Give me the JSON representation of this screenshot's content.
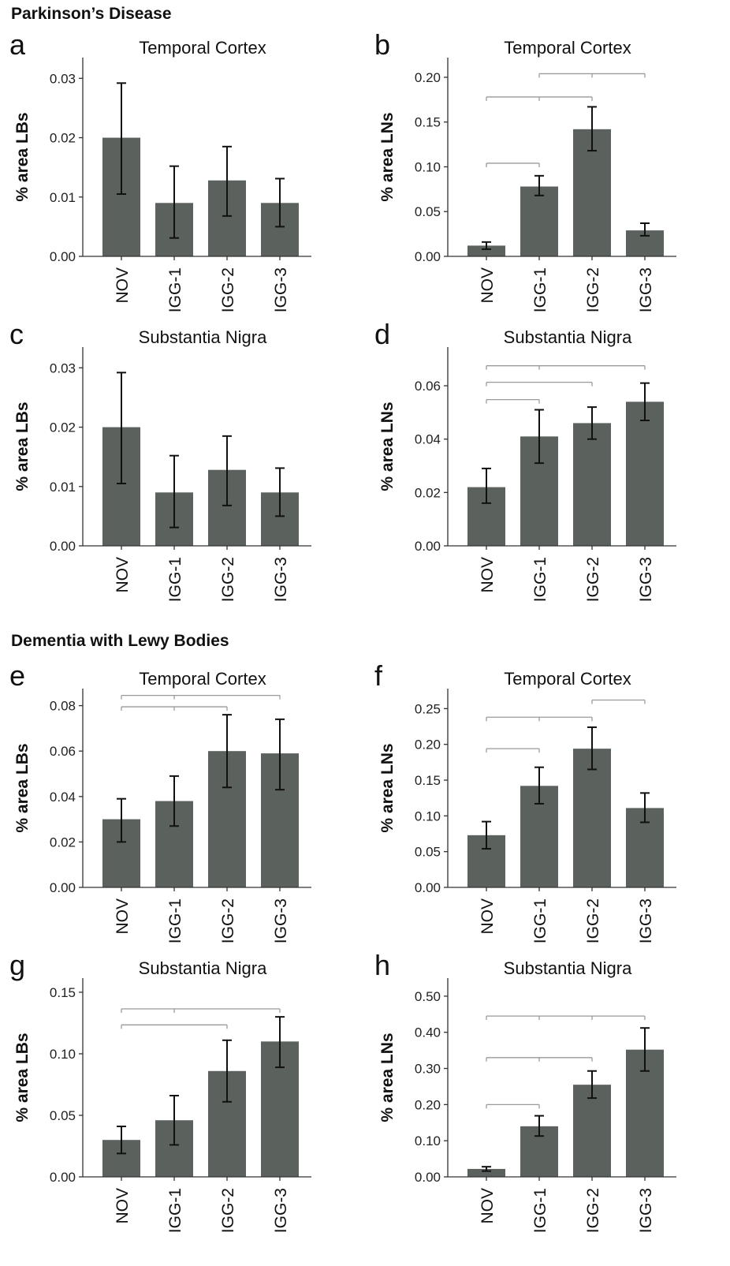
{
  "sections": [
    {
      "title": "Parkinson’s Disease"
    },
    {
      "title": "Dementia with Lewy Bodies"
    }
  ],
  "chart_data": [
    {
      "id": "a",
      "letter": "a",
      "type": "bar",
      "title": "Temporal Cortex",
      "ylabel": "% area LBs",
      "categories": [
        "NOV",
        "IGG-1",
        "IGG-2",
        "IGG-3"
      ],
      "values": [
        0.02,
        0.009,
        0.0128,
        0.009
      ],
      "err_low": [
        0.0105,
        0.0031,
        0.0068,
        0.005
      ],
      "err_high": [
        0.0292,
        0.0152,
        0.0185,
        0.0131
      ],
      "yticks": [
        0.0,
        0.01,
        0.02,
        0.03
      ],
      "tick_labels": [
        "0.00",
        "0.01",
        "0.02",
        "0.03"
      ],
      "ylim": [
        0,
        0.0335
      ],
      "brackets": []
    },
    {
      "id": "b",
      "letter": "b",
      "type": "bar",
      "title": "Temporal Cortex",
      "ylabel": "% area LNs",
      "categories": [
        "NOV",
        "IGG-1",
        "IGG-2",
        "IGG-3"
      ],
      "values": [
        0.012,
        0.078,
        0.142,
        0.029
      ],
      "err_low": [
        0.008,
        0.068,
        0.118,
        0.023
      ],
      "err_high": [
        0.016,
        0.09,
        0.167,
        0.037
      ],
      "yticks": [
        0.0,
        0.05,
        0.1,
        0.15,
        0.2
      ],
      "tick_labels": [
        "0.00",
        "0.05",
        "0.10",
        "0.15",
        "0.20"
      ],
      "ylim": [
        0,
        0.222
      ],
      "brackets": [
        {
          "level": 0.204,
          "from": 1,
          "to": 3,
          "mids": [
            2
          ]
        },
        {
          "level": 0.178,
          "from": 0,
          "to": 2,
          "mids": [
            1
          ]
        },
        {
          "level": 0.104,
          "from": 0,
          "to": 1,
          "mids": []
        }
      ]
    },
    {
      "id": "c",
      "letter": "c",
      "type": "bar",
      "title": "Substantia Nigra",
      "ylabel": "% area LBs",
      "categories": [
        "NOV",
        "IGG-1",
        "IGG-2",
        "IGG-3"
      ],
      "values": [
        0.02,
        0.009,
        0.0128,
        0.009
      ],
      "err_low": [
        0.0105,
        0.0031,
        0.0068,
        0.005
      ],
      "err_high": [
        0.0292,
        0.0152,
        0.0185,
        0.0131
      ],
      "yticks": [
        0.0,
        0.01,
        0.02,
        0.03
      ],
      "tick_labels": [
        "0.00",
        "0.01",
        "0.02",
        "0.03"
      ],
      "ylim": [
        0,
        0.0335
      ],
      "brackets": []
    },
    {
      "id": "d",
      "letter": "d",
      "type": "bar",
      "title": "Substantia Nigra",
      "ylabel": "% area LNs",
      "categories": [
        "NOV",
        "IGG-1",
        "IGG-2",
        "IGG-3"
      ],
      "values": [
        0.022,
        0.041,
        0.046,
        0.054
      ],
      "err_low": [
        0.016,
        0.031,
        0.04,
        0.047
      ],
      "err_high": [
        0.029,
        0.051,
        0.052,
        0.061
      ],
      "yticks": [
        0.0,
        0.02,
        0.04,
        0.06
      ],
      "tick_labels": [
        "0.00",
        "0.02",
        "0.04",
        "0.06"
      ],
      "ylim": [
        0,
        0.0745
      ],
      "brackets": [
        {
          "level": 0.0675,
          "from": 0,
          "to": 3,
          "mids": [
            1
          ]
        },
        {
          "level": 0.0613,
          "from": 0,
          "to": 2,
          "mids": []
        },
        {
          "level": 0.0548,
          "from": 0,
          "to": 1,
          "mids": []
        }
      ]
    },
    {
      "id": "e",
      "letter": "e",
      "type": "bar",
      "title": "Temporal Cortex",
      "ylabel": "% area LBs",
      "categories": [
        "NOV",
        "IGG-1",
        "IGG-2",
        "IGG-3"
      ],
      "values": [
        0.03,
        0.038,
        0.06,
        0.059
      ],
      "err_low": [
        0.02,
        0.027,
        0.044,
        0.043
      ],
      "err_high": [
        0.039,
        0.049,
        0.076,
        0.074
      ],
      "yticks": [
        0.0,
        0.02,
        0.04,
        0.06,
        0.08
      ],
      "tick_labels": [
        "0.00",
        "0.02",
        "0.04",
        "0.06",
        "0.08"
      ],
      "ylim": [
        0,
        0.0875
      ],
      "brackets": [
        {
          "level": 0.0845,
          "from": 0,
          "to": 3,
          "mids": [
            1
          ]
        },
        {
          "level": 0.0795,
          "from": 0,
          "to": 2,
          "mids": [
            1
          ]
        }
      ]
    },
    {
      "id": "f",
      "letter": "f",
      "type": "bar",
      "title": "Temporal Cortex",
      "ylabel": "% area LNs",
      "categories": [
        "NOV",
        "IGG-1",
        "IGG-2",
        "IGG-3"
      ],
      "values": [
        0.073,
        0.142,
        0.194,
        0.111
      ],
      "err_low": [
        0.054,
        0.117,
        0.165,
        0.091
      ],
      "err_high": [
        0.092,
        0.168,
        0.224,
        0.132
      ],
      "yticks": [
        0.0,
        0.05,
        0.1,
        0.15,
        0.2,
        0.25
      ],
      "tick_labels": [
        "0.00",
        "0.05",
        "0.10",
        "0.15",
        "0.20",
        "0.25"
      ],
      "ylim": [
        0,
        0.278
      ],
      "brackets": [
        {
          "level": 0.262,
          "from": 2,
          "to": 3,
          "mids": []
        },
        {
          "level": 0.238,
          "from": 0,
          "to": 2,
          "mids": [
            1
          ]
        },
        {
          "level": 0.194,
          "from": 0,
          "to": 1,
          "mids": []
        }
      ]
    },
    {
      "id": "g",
      "letter": "g",
      "type": "bar",
      "title": "Substantia Nigra",
      "ylabel": "% area LBs",
      "categories": [
        "NOV",
        "IGG-1",
        "IGG-2",
        "IGG-3"
      ],
      "values": [
        0.03,
        0.046,
        0.086,
        0.11
      ],
      "err_low": [
        0.019,
        0.026,
        0.061,
        0.089
      ],
      "err_high": [
        0.041,
        0.066,
        0.111,
        0.13
      ],
      "yticks": [
        0.0,
        0.05,
        0.1,
        0.15
      ],
      "tick_labels": [
        "0.00",
        "0.05",
        "0.10",
        "0.15"
      ],
      "ylim": [
        0,
        0.1615
      ],
      "brackets": [
        {
          "level": 0.1365,
          "from": 0,
          "to": 3,
          "mids": [
            1
          ]
        },
        {
          "level": 0.1235,
          "from": 0,
          "to": 2,
          "mids": []
        }
      ]
    },
    {
      "id": "h",
      "letter": "h",
      "type": "bar",
      "title": "Substantia Nigra",
      "ylabel": "% area LNs",
      "categories": [
        "NOV",
        "IGG-1",
        "IGG-2",
        "IGG-3"
      ],
      "values": [
        0.022,
        0.14,
        0.255,
        0.352
      ],
      "err_low": [
        0.016,
        0.113,
        0.218,
        0.293
      ],
      "err_high": [
        0.028,
        0.169,
        0.293,
        0.412
      ],
      "yticks": [
        0.0,
        0.1,
        0.2,
        0.3,
        0.4,
        0.5
      ],
      "tick_labels": [
        "0.00",
        "0.10",
        "0.20",
        "0.30",
        "0.40",
        "0.50"
      ],
      "ylim": [
        0,
        0.55
      ],
      "brackets": [
        {
          "level": 0.445,
          "from": 0,
          "to": 3,
          "mids": [
            1,
            2
          ]
        },
        {
          "level": 0.33,
          "from": 0,
          "to": 2,
          "mids": [
            1
          ]
        },
        {
          "level": 0.2,
          "from": 0,
          "to": 1,
          "mids": []
        }
      ]
    }
  ],
  "colors": {
    "bar": "#5b625d",
    "axis": "#333333",
    "bracket": "#9a9a9a",
    "error": "#111111"
  }
}
